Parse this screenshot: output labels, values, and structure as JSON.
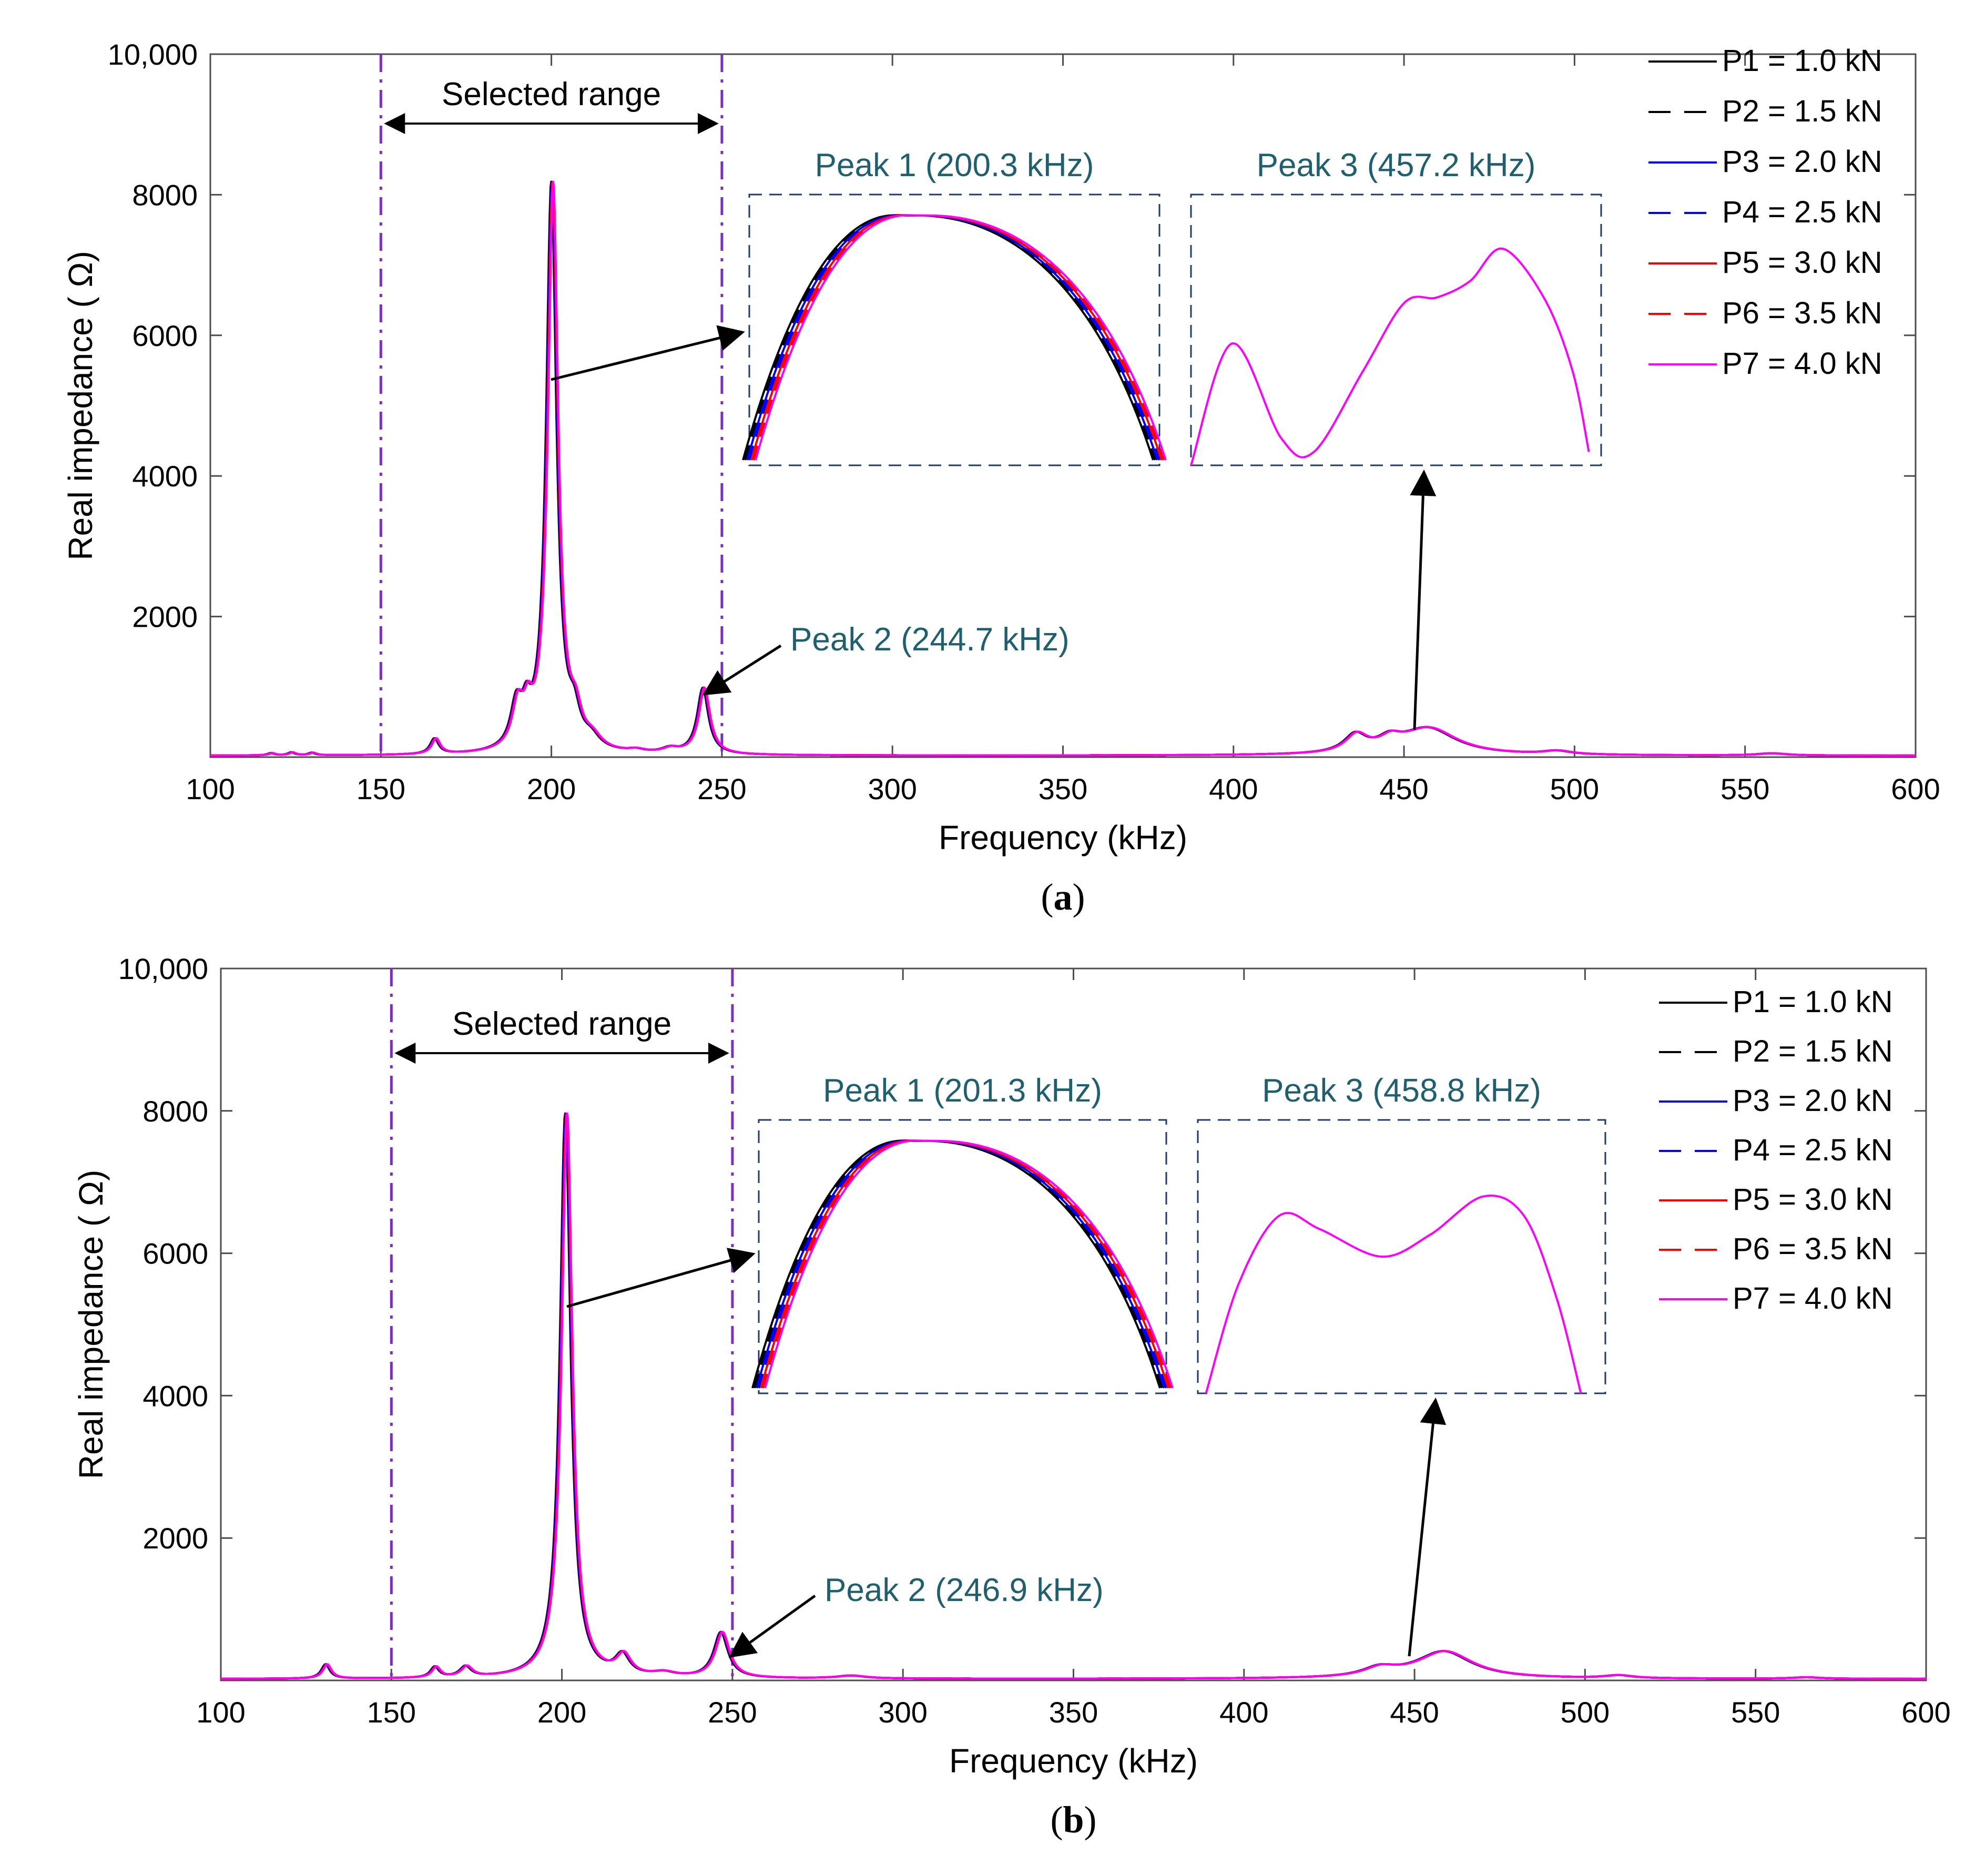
{
  "chart_data": [
    {
      "type": "line",
      "panel_label": "a",
      "xlabel": "Frequency (kHz)",
      "ylabel": "Real impedance ( Ω)",
      "xlim": [
        100,
        600
      ],
      "ylim": [
        0,
        10000
      ],
      "x_ticks": [
        100,
        150,
        200,
        250,
        300,
        350,
        400,
        450,
        500,
        550,
        600
      ],
      "x_tick_labels": [
        "100",
        "150",
        "200",
        "250",
        "300",
        "350",
        "400",
        "450",
        "500",
        "550",
        "600"
      ],
      "y_ticks": [
        2000,
        4000,
        6000,
        8000,
        10000
      ],
      "y_tick_labels": [
        "2000",
        "4000",
        "6000",
        "8000",
        "10,000"
      ],
      "legend": [
        {
          "label": "P1 = 1.0 kN",
          "color": "#000000",
          "dash": "solid"
        },
        {
          "label": "P2 = 1.5 kN",
          "color": "#000000",
          "dash": "dashed"
        },
        {
          "label": "P3 = 2.0 kN",
          "color": "#0000ff",
          "dash": "solid"
        },
        {
          "label": "P4 = 2.5 kN",
          "color": "#0000ff",
          "dash": "dashed"
        },
        {
          "label": "P5 = 3.0 kN",
          "color": "#ff0000",
          "dash": "solid"
        },
        {
          "label": "P6 = 3.5 kN",
          "color": "#ff0000",
          "dash": "dashed"
        },
        {
          "label": "P7 = 4.0 kN",
          "color": "#ff00ff",
          "dash": "solid"
        }
      ],
      "legend_position": "top-right",
      "selected_range": {
        "label": "Selected range",
        "start": 150,
        "end": 250
      },
      "peaks": [
        {
          "label": "Peak 1 (200.3 kHz)",
          "freq": 200.3,
          "value": 8100,
          "width": 1.8
        },
        {
          "label": "Peak 2 (244.7 kHz)",
          "freq": 244.7,
          "value": 940,
          "width": 2.0
        },
        {
          "label": "Peak 3 (457.2 kHz)",
          "freq": 457.2,
          "value": 380,
          "width": 10
        }
      ],
      "minor_peaks": [
        {
          "freq": 118,
          "value": 30,
          "width": 1.2
        },
        {
          "freq": 124,
          "value": 40,
          "width": 1.2
        },
        {
          "freq": 130,
          "value": 35,
          "width": 1.2
        },
        {
          "freq": 166,
          "value": 220,
          "width": 1.5
        },
        {
          "freq": 190,
          "value": 600,
          "width": 2.0
        },
        {
          "freq": 193,
          "value": 400,
          "width": 1.5
        },
        {
          "freq": 207,
          "value": 400,
          "width": 2.0
        },
        {
          "freq": 212,
          "value": 150,
          "width": 3.0
        },
        {
          "freq": 225,
          "value": 40,
          "width": 3.0
        },
        {
          "freq": 235,
          "value": 70,
          "width": 3.0
        },
        {
          "freq": 436,
          "value": 250,
          "width": 4.0
        },
        {
          "freq": 446,
          "value": 150,
          "width": 4.0
        },
        {
          "freq": 495,
          "value": 50,
          "width": 5.0
        },
        {
          "freq": 558,
          "value": 30,
          "width": 5.0
        }
      ],
      "baseline": 20,
      "inset_peak1_title": "Peak 1 (200.3 kHz)",
      "inset_peak3_title": "Peak 3 (457.2 kHz)",
      "inset_peak3_shape": [
        {
          "freq": 0.0,
          "value": 0.0
        },
        {
          "freq": 0.1,
          "value": 0.45
        },
        {
          "freq": 0.22,
          "value": 0.1
        },
        {
          "freq": 0.3,
          "value": 0.05
        },
        {
          "freq": 0.42,
          "value": 0.35
        },
        {
          "freq": 0.52,
          "value": 0.6
        },
        {
          "freq": 0.6,
          "value": 0.62
        },
        {
          "freq": 0.68,
          "value": 0.68
        },
        {
          "freq": 0.76,
          "value": 0.8
        },
        {
          "freq": 0.86,
          "value": 0.62
        },
        {
          "freq": 0.93,
          "value": 0.35
        },
        {
          "freq": 0.97,
          "value": 0.05
        }
      ]
    },
    {
      "type": "line",
      "panel_label": "b",
      "xlabel": "Frequency (kHz)",
      "ylabel": "Real impedance ( Ω)",
      "xlim": [
        100,
        600
      ],
      "ylim": [
        0,
        10000
      ],
      "x_ticks": [
        100,
        150,
        200,
        250,
        300,
        350,
        400,
        450,
        500,
        550,
        600
      ],
      "x_tick_labels": [
        "100",
        "150",
        "200",
        "250",
        "300",
        "350",
        "400",
        "450",
        "500",
        "550",
        "600"
      ],
      "y_ticks": [
        2000,
        4000,
        6000,
        8000,
        10000
      ],
      "y_tick_labels": [
        "2000",
        "4000",
        "6000",
        "8000",
        "10,000"
      ],
      "legend": [
        {
          "label": "P1 = 1.0 kN",
          "color": "#000000",
          "dash": "solid"
        },
        {
          "label": "P2 = 1.5 kN",
          "color": "#000000",
          "dash": "dashed"
        },
        {
          "label": "P3 = 2.0 kN",
          "color": "#0000ff",
          "dash": "solid"
        },
        {
          "label": "P4 = 2.5 kN",
          "color": "#0000ff",
          "dash": "dashed"
        },
        {
          "label": "P5 = 3.0 kN",
          "color": "#ff0000",
          "dash": "solid"
        },
        {
          "label": "P6 = 3.5 kN",
          "color": "#ff0000",
          "dash": "dashed"
        },
        {
          "label": "P7 = 4.0 kN",
          "color": "#ff00ff",
          "dash": "solid"
        }
      ],
      "legend_position": "top-right",
      "selected_range": {
        "label": "Selected range",
        "start": 150,
        "end": 250
      },
      "peaks": [
        {
          "label": "Peak 1 (201.3 kHz)",
          "freq": 201.3,
          "value": 7950,
          "width": 1.9
        },
        {
          "label": "Peak 2 (246.9 kHz)",
          "freq": 246.9,
          "value": 640,
          "width": 2.5
        },
        {
          "label": "Peak 3 (458.8 kHz)",
          "freq": 458.8,
          "value": 380,
          "width": 10
        }
      ],
      "minor_peaks": [
        {
          "freq": 131,
          "value": 200,
          "width": 1.5
        },
        {
          "freq": 163,
          "value": 150,
          "width": 1.5
        },
        {
          "freq": 172,
          "value": 150,
          "width": 2.0
        },
        {
          "freq": 218,
          "value": 280,
          "width": 2.5
        },
        {
          "freq": 230,
          "value": 60,
          "width": 4.0
        },
        {
          "freq": 285,
          "value": 40,
          "width": 5.0
        },
        {
          "freq": 440,
          "value": 120,
          "width": 6.0
        },
        {
          "freq": 510,
          "value": 40,
          "width": 5.0
        },
        {
          "freq": 565,
          "value": 20,
          "width": 5.0
        }
      ],
      "baseline": 20,
      "inset_peak1_title": "Peak 1 (201.3 kHz)",
      "inset_peak3_title": "Peak 3 (458.8 kHz)",
      "inset_peak3_shape": [
        {
          "freq": 0.02,
          "value": 0.0
        },
        {
          "freq": 0.1,
          "value": 0.4
        },
        {
          "freq": 0.2,
          "value": 0.65
        },
        {
          "freq": 0.3,
          "value": 0.6
        },
        {
          "freq": 0.45,
          "value": 0.5
        },
        {
          "freq": 0.57,
          "value": 0.58
        },
        {
          "freq": 0.7,
          "value": 0.72
        },
        {
          "freq": 0.8,
          "value": 0.65
        },
        {
          "freq": 0.88,
          "value": 0.35
        },
        {
          "freq": 0.94,
          "value": 0.0
        }
      ]
    }
  ]
}
